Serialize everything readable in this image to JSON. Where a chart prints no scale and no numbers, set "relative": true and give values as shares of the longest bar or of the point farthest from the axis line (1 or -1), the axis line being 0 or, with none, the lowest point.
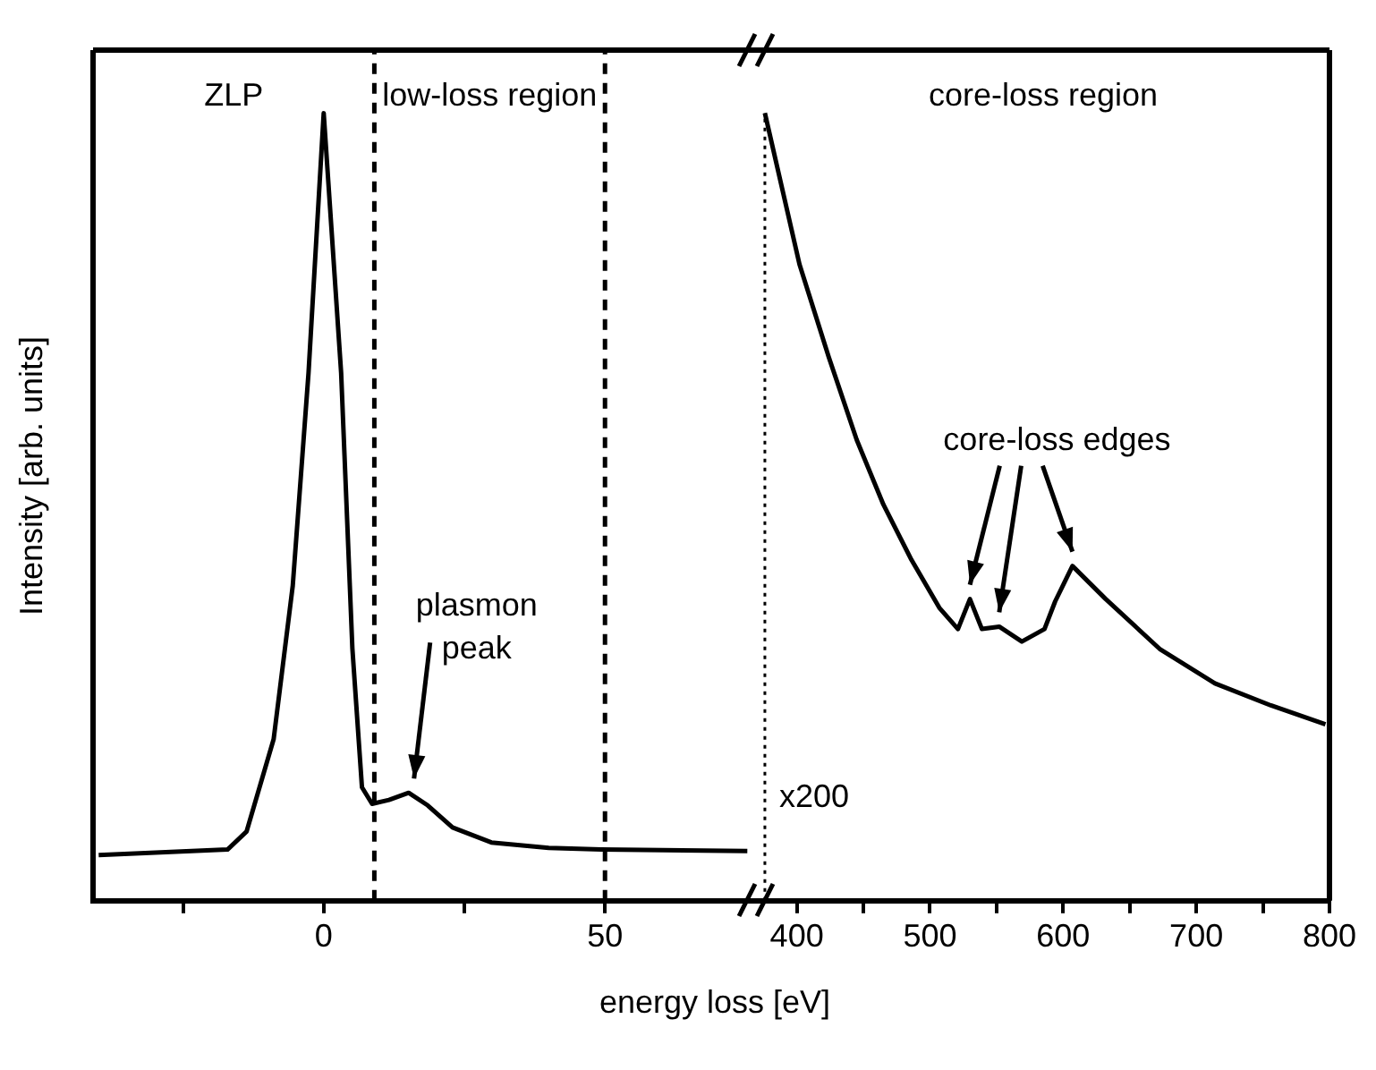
{
  "chart_data": [
    {
      "type": "line",
      "relative": true,
      "ylabel": "Intensity [arb. units]",
      "xlabel": "energy loss [eV]",
      "marker": "none",
      "color": "#000000",
      "x": [
        -40,
        -17.1,
        -13.7,
        -8.9,
        -5.5,
        -2.7,
        0,
        3.1,
        5.1,
        6.8,
        8.6,
        11.6,
        15.1,
        18.5,
        22.9,
        29.8,
        40,
        49.3,
        75.3
      ],
      "values": [
        0.058,
        0.065,
        0.088,
        0.205,
        0.4,
        0.67,
        1,
        0.67,
        0.32,
        0.144,
        0.123,
        0.128,
        0.137,
        0.121,
        0.093,
        0.074,
        0.067,
        0.065,
        0.063
      ],
      "xlim": [
        -41,
        77
      ],
      "xticks": [
        {
          "value": -25,
          "label": null
        },
        0,
        {
          "value": 25,
          "label": null
        },
        50
      ],
      "ref_lines": [
        {
          "axis": "x",
          "value": 9,
          "line_style": "dashed"
        },
        {
          "axis": "x",
          "value": 50,
          "line_style": "dashed"
        }
      ],
      "annotations": [
        "ZLP",
        "low-loss region",
        {
          "text": "plasmon peak",
          "x": 15.1,
          "y": 0.137
        }
      ]
    },
    {
      "type": "line",
      "relative": true,
      "marker": "none",
      "color": "#000000",
      "x": [
        376,
        402,
        424,
        445,
        465,
        486,
        507,
        521,
        530,
        539,
        552,
        569,
        586,
        594,
        607,
        632,
        673,
        714,
        756,
        797
      ],
      "values": [
        1,
        0.808,
        0.69,
        0.585,
        0.503,
        0.433,
        0.372,
        0.345,
        0.383,
        0.345,
        0.348,
        0.329,
        0.345,
        0.38,
        0.425,
        0.383,
        0.319,
        0.276,
        0.248,
        0.224
      ],
      "xlim": [
        370,
        800
      ],
      "xticks": [
        400,
        {
          "value": 450,
          "label": null
        },
        500,
        {
          "value": 550,
          "label": null
        },
        600,
        {
          "value": 650,
          "label": null
        },
        700,
        {
          "value": 750,
          "label": null
        },
        800
      ],
      "ref_lines": [
        {
          "axis": "x",
          "value": 376,
          "label": "x200",
          "line_style": "dotted"
        }
      ],
      "annotations": [
        "core-loss region",
        "core-loss edges"
      ]
    }
  ]
}
